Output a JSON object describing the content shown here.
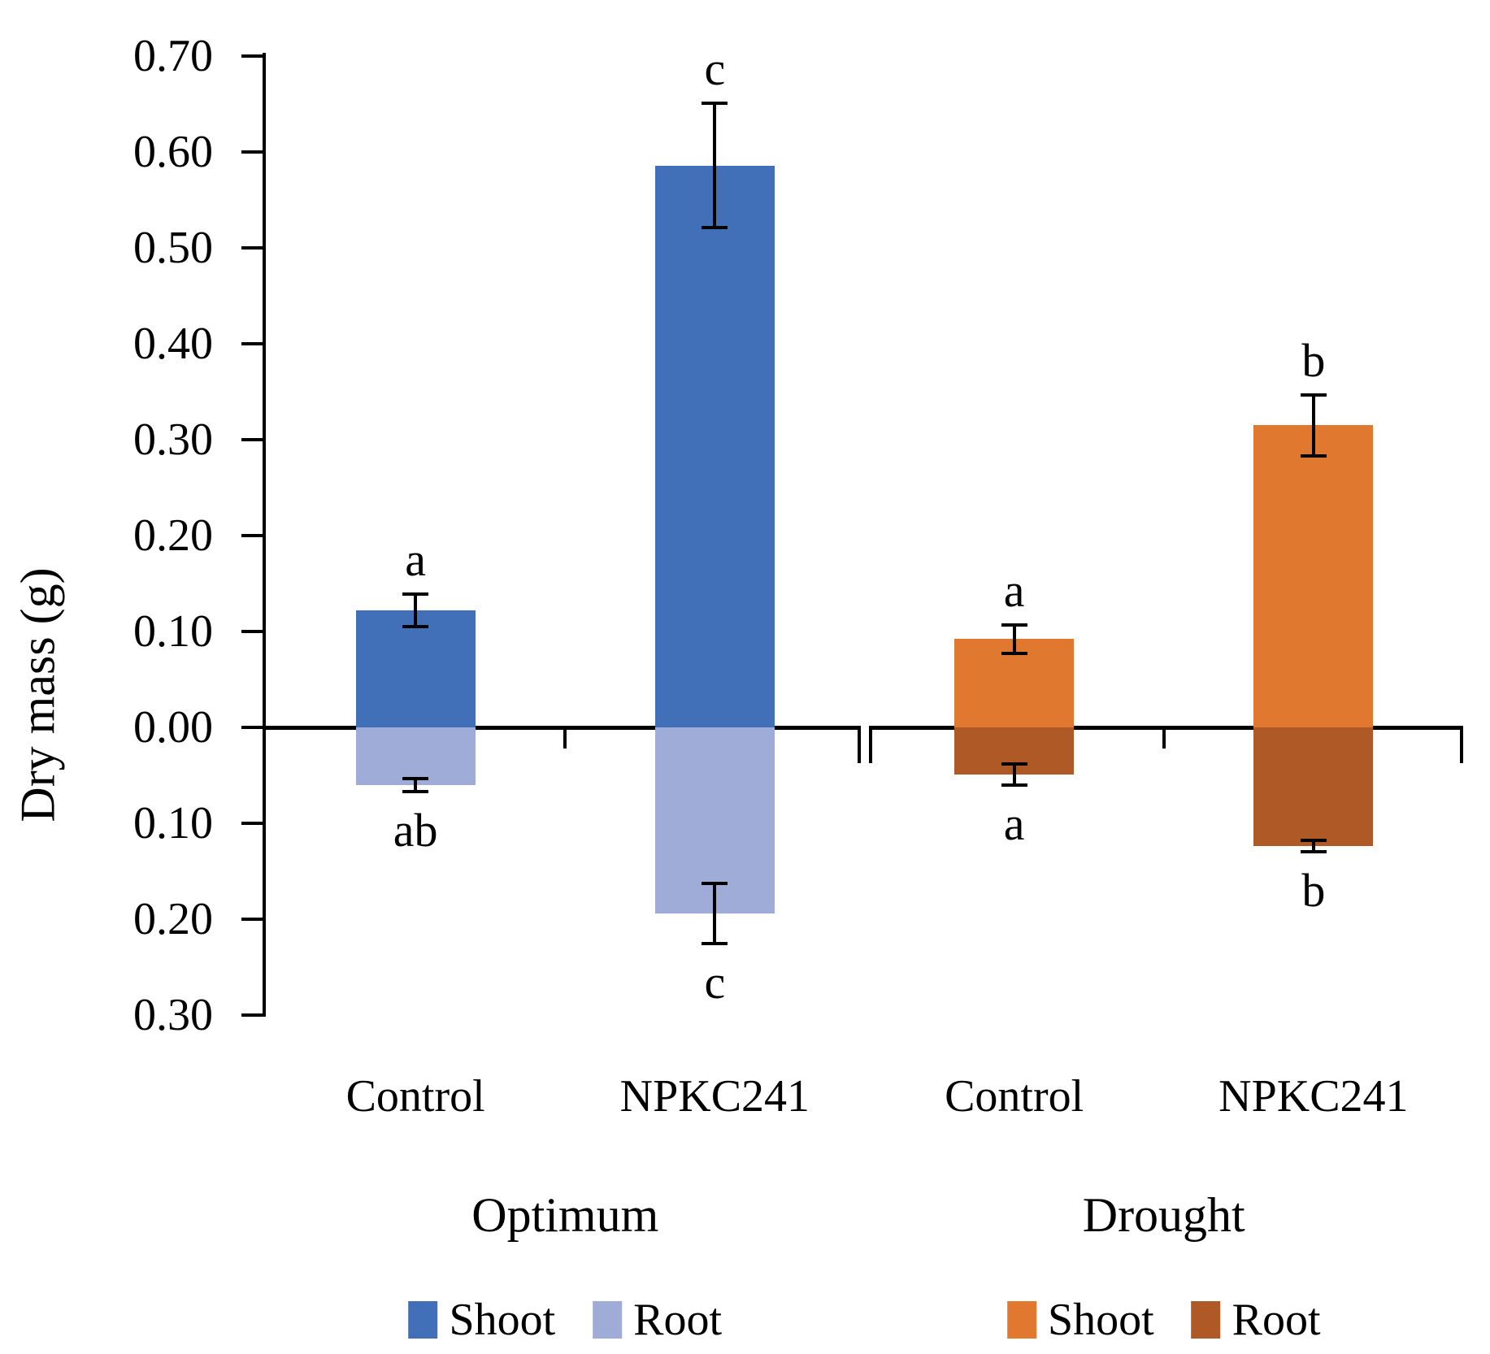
{
  "chart_data": {
    "type": "bar",
    "title": "",
    "xlabel": "",
    "ylabel": "Dry mass (g)",
    "ylim": [
      -0.3,
      0.7
    ],
    "grid": false,
    "legend_position": "bottom",
    "yticks": {
      "values": [
        0.7,
        0.6,
        0.5,
        0.4,
        0.3,
        0.2,
        0.1,
        0.0,
        -0.1,
        -0.2,
        -0.3
      ],
      "labels": [
        "0.70",
        "0.60",
        "0.50",
        "0.40",
        "0.30",
        "0.20",
        "0.10",
        "0.00",
        "0.10",
        "0.20",
        "0.30"
      ]
    },
    "categories": [
      "Control",
      "NPKC241",
      "Control",
      "NPKC241"
    ],
    "groups": [
      {
        "label": "Optimum",
        "legend": [
          {
            "name": "Shoot",
            "color": "#4270B8"
          },
          {
            "name": "Root",
            "color": "#9FACD8"
          }
        ],
        "categories": [
          {
            "label": "Control",
            "shoot": {
              "value": 0.122,
              "error": 0.017,
              "letter": "a"
            },
            "root": {
              "value": -0.06,
              "error": 0.007,
              "letter": "ab"
            }
          },
          {
            "label": "NPKC241",
            "shoot": {
              "value": 0.586,
              "error": 0.065,
              "letter": "c"
            },
            "root": {
              "value": -0.194,
              "error": 0.031,
              "letter": "c"
            }
          }
        ]
      },
      {
        "label": "Drought",
        "legend": [
          {
            "name": "Shoot",
            "color": "#E0792F"
          },
          {
            "name": "Root",
            "color": "#AF5A26"
          }
        ],
        "categories": [
          {
            "label": "Control",
            "shoot": {
              "value": 0.092,
              "error": 0.015,
              "letter": "a"
            },
            "root": {
              "value": -0.049,
              "error": 0.011,
              "letter": "a"
            }
          },
          {
            "label": "NPKC241",
            "shoot": {
              "value": 0.315,
              "error": 0.032,
              "letter": "b"
            },
            "root": {
              "value": -0.124,
              "error": 0.006,
              "letter": "b"
            }
          }
        ]
      }
    ]
  }
}
